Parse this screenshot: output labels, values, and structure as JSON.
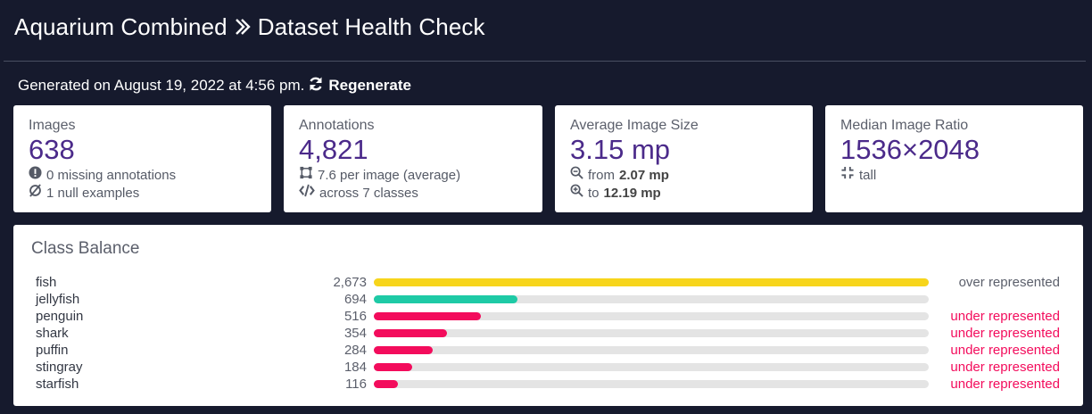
{
  "header": {
    "project": "Aquarium Combined",
    "page": "Dataset Health Check"
  },
  "generated": {
    "text": "Generated on August 19, 2022 at 4:56 pm.",
    "regenerate_label": "Regenerate"
  },
  "cards": {
    "images": {
      "label": "Images",
      "value": "638",
      "line1": "0 missing annotations",
      "line2": "1 null examples"
    },
    "annotations": {
      "label": "Annotations",
      "value": "4,821",
      "line1": "7.6 per image (average)",
      "line2": "across 7 classes"
    },
    "size": {
      "label": "Average Image Size",
      "value": "3.15 mp",
      "line1_prefix": "from",
      "line1_value": "2.07 mp",
      "line2_prefix": "to",
      "line2_value": "12.19 mp"
    },
    "ratio": {
      "label": "Median Image Ratio",
      "value": "1536×2048",
      "line1": "tall"
    }
  },
  "class_balance": {
    "title": "Class Balance",
    "max_count": 2673,
    "rows": [
      {
        "name": "fish",
        "count": "2,673",
        "value": 2673,
        "color": "#f7d51b",
        "status": "over represented",
        "status_color": "#5b5f6b"
      },
      {
        "name": "jellyfish",
        "count": "694",
        "value": 694,
        "color": "#1ecaa6",
        "status": "",
        "status_color": "#5b5f6b"
      },
      {
        "name": "penguin",
        "count": "516",
        "value": 516,
        "color": "#f30c5c",
        "status": "under represented",
        "status_color": "#f30c5c"
      },
      {
        "name": "shark",
        "count": "354",
        "value": 354,
        "color": "#f30c5c",
        "status": "under represented",
        "status_color": "#f30c5c"
      },
      {
        "name": "puffin",
        "count": "284",
        "value": 284,
        "color": "#f30c5c",
        "status": "under represented",
        "status_color": "#f30c5c"
      },
      {
        "name": "stingray",
        "count": "184",
        "value": 184,
        "color": "#f30c5c",
        "status": "under represented",
        "status_color": "#f30c5c"
      },
      {
        "name": "starfish",
        "count": "116",
        "value": 116,
        "color": "#f30c5c",
        "status": "under represented",
        "status_color": "#f30c5c"
      }
    ]
  }
}
